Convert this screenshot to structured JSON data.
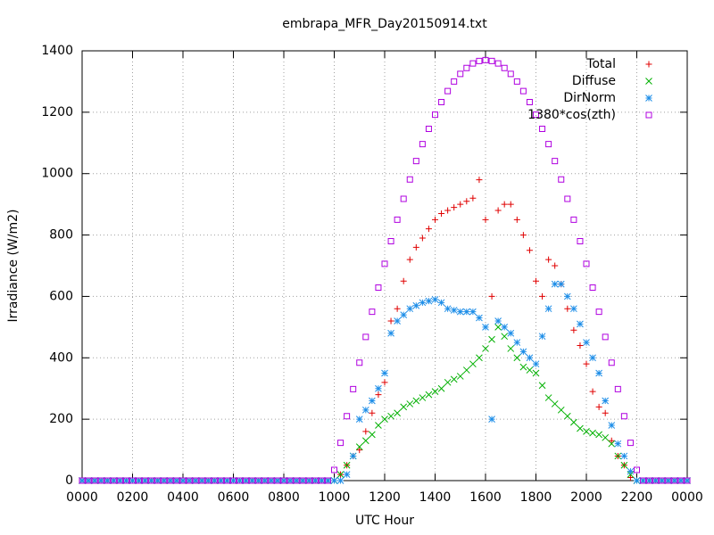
{
  "chart_data": {
    "type": "scatter",
    "title": "embrapa_MFR_Day20150914.txt",
    "x_label": "UTC Hour",
    "y_label": "Irradiance (W/m2)",
    "xlim": [
      0,
      24
    ],
    "ylim": [
      0,
      1400
    ],
    "xticks": [
      {
        "value": 0,
        "label": "0000"
      },
      {
        "value": 2,
        "label": "0200"
      },
      {
        "value": 4,
        "label": "0400"
      },
      {
        "value": 6,
        "label": "0600"
      },
      {
        "value": 8,
        "label": "0800"
      },
      {
        "value": 10,
        "label": "1000"
      },
      {
        "value": 12,
        "label": "1200"
      },
      {
        "value": 14,
        "label": "1400"
      },
      {
        "value": 16,
        "label": "1600"
      },
      {
        "value": 18,
        "label": "1800"
      },
      {
        "value": 20,
        "label": "2000"
      },
      {
        "value": 22,
        "label": "2200"
      },
      {
        "value": 24,
        "label": "0000"
      }
    ],
    "yticks": [
      0,
      200,
      400,
      600,
      800,
      1000,
      1200,
      1400
    ],
    "grid": true,
    "legend": "top-right",
    "x": [
      0,
      0.25,
      0.5,
      0.75,
      1,
      1.25,
      1.5,
      1.75,
      2,
      2.25,
      2.5,
      2.75,
      3,
      3.25,
      3.5,
      3.75,
      4,
      4.25,
      4.5,
      4.75,
      5,
      5.25,
      5.5,
      5.75,
      6,
      6.25,
      6.5,
      6.75,
      7,
      7.25,
      7.5,
      7.75,
      8,
      8.25,
      8.5,
      8.75,
      9,
      9.25,
      9.5,
      9.75,
      10,
      10.25,
      10.5,
      10.75,
      11,
      11.25,
      11.5,
      11.75,
      12,
      12.25,
      12.5,
      12.75,
      13,
      13.25,
      13.5,
      13.75,
      14,
      14.25,
      14.5,
      14.75,
      15,
      15.25,
      15.5,
      15.75,
      16,
      16.25,
      16.5,
      16.75,
      17,
      17.25,
      17.5,
      17.75,
      18,
      18.25,
      18.5,
      18.75,
      19,
      19.25,
      19.5,
      19.75,
      20,
      20.25,
      20.5,
      20.75,
      21,
      21.25,
      21.5,
      21.75,
      22,
      22.25,
      22.5,
      22.75,
      23,
      23.25,
      23.5,
      23.75,
      24
    ],
    "series": [
      {
        "name": "Total",
        "color": "#e00000",
        "marker": "plus",
        "values": [
          0,
          0,
          0,
          0,
          0,
          0,
          0,
          0,
          0,
          0,
          0,
          0,
          0,
          0,
          0,
          0,
          0,
          0,
          0,
          0,
          0,
          0,
          0,
          0,
          0,
          0,
          0,
          0,
          0,
          0,
          0,
          0,
          0,
          0,
          0,
          0,
          0,
          0,
          0,
          0,
          0,
          20,
          50,
          80,
          100,
          160,
          220,
          280,
          320,
          520,
          560,
          650,
          720,
          760,
          790,
          820,
          850,
          870,
          880,
          890,
          900,
          910,
          920,
          980,
          850,
          600,
          880,
          900,
          900,
          850,
          800,
          750,
          650,
          600,
          720,
          700,
          640,
          560,
          490,
          440,
          380,
          290,
          240,
          220,
          130,
          80,
          50,
          10,
          0,
          0,
          0,
          0,
          0,
          0,
          0,
          0,
          0
        ]
      },
      {
        "name": "Diffuse",
        "color": "#00b000",
        "marker": "cross",
        "values": [
          0,
          0,
          0,
          0,
          0,
          0,
          0,
          0,
          0,
          0,
          0,
          0,
          0,
          0,
          0,
          0,
          0,
          0,
          0,
          0,
          0,
          0,
          0,
          0,
          0,
          0,
          0,
          0,
          0,
          0,
          0,
          0,
          0,
          0,
          0,
          0,
          0,
          0,
          0,
          0,
          0,
          20,
          50,
          80,
          110,
          130,
          150,
          180,
          200,
          210,
          220,
          240,
          250,
          260,
          270,
          280,
          290,
          300,
          320,
          330,
          340,
          360,
          380,
          400,
          430,
          460,
          500,
          470,
          430,
          400,
          370,
          360,
          350,
          310,
          270,
          250,
          230,
          210,
          190,
          170,
          160,
          155,
          150,
          140,
          120,
          80,
          50,
          20,
          0,
          0,
          0,
          0,
          0,
          0,
          0,
          0,
          0
        ]
      },
      {
        "name": "DirNorm",
        "color": "#1e8ee8",
        "marker": "star",
        "values": [
          0,
          0,
          0,
          0,
          0,
          0,
          0,
          0,
          0,
          0,
          0,
          0,
          0,
          0,
          0,
          0,
          0,
          0,
          0,
          0,
          0,
          0,
          0,
          0,
          0,
          0,
          0,
          0,
          0,
          0,
          0,
          0,
          0,
          0,
          0,
          0,
          0,
          0,
          0,
          0,
          0,
          0,
          20,
          80,
          200,
          230,
          260,
          300,
          350,
          480,
          520,
          540,
          560,
          570,
          580,
          585,
          590,
          580,
          560,
          555,
          550,
          550,
          550,
          530,
          500,
          200,
          520,
          500,
          480,
          450,
          420,
          400,
          380,
          470,
          560,
          640,
          640,
          600,
          560,
          510,
          450,
          400,
          350,
          260,
          180,
          120,
          80,
          30,
          0,
          0,
          0,
          0,
          0,
          0,
          0,
          0,
          0
        ]
      },
      {
        "name": "1380*cos(zth)",
        "color": "#b000e0",
        "marker": "square",
        "values": [
          0,
          0,
          0,
          0,
          0,
          0,
          0,
          0,
          0,
          0,
          0,
          0,
          0,
          0,
          0,
          0,
          0,
          0,
          0,
          0,
          0,
          0,
          0,
          0,
          0,
          0,
          0,
          0,
          0,
          0,
          0,
          0,
          0,
          0,
          0,
          0,
          0,
          0,
          0,
          0,
          35,
          123,
          210,
          298,
          384,
          468,
          550,
          629,
          706,
          780,
          850,
          918,
          981,
          1041,
          1096,
          1146,
          1192,
          1233,
          1269,
          1300,
          1325,
          1344,
          1359,
          1367,
          1370,
          1367,
          1359,
          1344,
          1325,
          1300,
          1269,
          1233,
          1192,
          1146,
          1096,
          1041,
          981,
          918,
          850,
          780,
          706,
          629,
          550,
          468,
          384,
          298,
          210,
          123,
          35,
          0,
          0,
          0,
          0,
          0,
          0,
          0,
          0
        ]
      }
    ]
  }
}
